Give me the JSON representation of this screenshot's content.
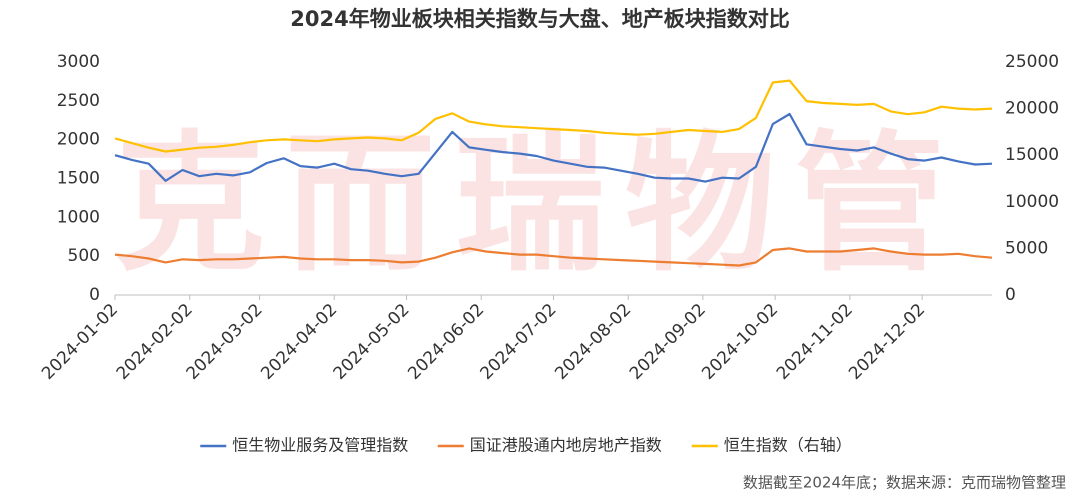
{
  "chart_data": {
    "type": "line",
    "title": "2024年物业板块相关指数与大盘、地产板块指数对比",
    "watermark": "克而瑞物管",
    "source": "数据截至2024年底；数据来源：克而瑞物管整理",
    "x": [
      "2024-01-02",
      "2024-01-09",
      "2024-01-16",
      "2024-01-23",
      "2024-01-30",
      "2024-02-06",
      "2024-02-13",
      "2024-02-20",
      "2024-02-27",
      "2024-03-05",
      "2024-03-12",
      "2024-03-19",
      "2024-03-26",
      "2024-04-02",
      "2024-04-09",
      "2024-04-16",
      "2024-04-23",
      "2024-04-30",
      "2024-05-07",
      "2024-05-14",
      "2024-05-21",
      "2024-05-28",
      "2024-06-04",
      "2024-06-11",
      "2024-06-18",
      "2024-06-25",
      "2024-07-02",
      "2024-07-09",
      "2024-07-16",
      "2024-07-23",
      "2024-07-30",
      "2024-08-06",
      "2024-08-13",
      "2024-08-20",
      "2024-08-27",
      "2024-09-03",
      "2024-09-10",
      "2024-09-17",
      "2024-09-24",
      "2024-10-01",
      "2024-10-08",
      "2024-10-15",
      "2024-10-22",
      "2024-10-29",
      "2024-11-05",
      "2024-11-12",
      "2024-11-19",
      "2024-11-26",
      "2024-12-03",
      "2024-12-10",
      "2024-12-17",
      "2024-12-24",
      "2024-12-31"
    ],
    "series": [
      {
        "name": "恒生物业服务及管理指数",
        "color": "#4472c4",
        "axis": "y",
        "values": [
          1800,
          1740,
          1690,
          1470,
          1610,
          1530,
          1560,
          1540,
          1580,
          1700,
          1760,
          1660,
          1640,
          1690,
          1620,
          1600,
          1560,
          1530,
          1560,
          1830,
          2100,
          1900,
          1870,
          1840,
          1820,
          1790,
          1730,
          1690,
          1650,
          1640,
          1600,
          1560,
          1510,
          1500,
          1500,
          1460,
          1510,
          1500,
          1650,
          2200,
          2330,
          1940,
          1910,
          1880,
          1860,
          1900,
          1820,
          1750,
          1730,
          1770,
          1720,
          1680,
          1690
        ]
      },
      {
        "name": "国证港股通内地房地产指数",
        "color": "#ed7d31",
        "axis": "y",
        "values": [
          520,
          500,
          470,
          420,
          460,
          450,
          460,
          460,
          470,
          480,
          490,
          470,
          460,
          460,
          450,
          450,
          440,
          420,
          430,
          480,
          550,
          600,
          560,
          540,
          520,
          520,
          500,
          480,
          470,
          460,
          450,
          440,
          430,
          420,
          410,
          400,
          390,
          380,
          420,
          580,
          600,
          560,
          560,
          560,
          580,
          600,
          560,
          530,
          520,
          520,
          530,
          500,
          480
        ]
      },
      {
        "name": "恒生指数（右轴）",
        "color": "#ffc000",
        "axis": "y2",
        "values": [
          16800,
          16300,
          15800,
          15400,
          15600,
          15800,
          15900,
          16100,
          16400,
          16600,
          16700,
          16600,
          16500,
          16700,
          16800,
          16900,
          16800,
          16600,
          17400,
          18900,
          19500,
          18600,
          18300,
          18100,
          18000,
          17900,
          17800,
          17700,
          17600,
          17400,
          17300,
          17200,
          17300,
          17500,
          17700,
          17600,
          17500,
          17800,
          19000,
          22800,
          23000,
          20800,
          20600,
          20500,
          20400,
          20500,
          19700,
          19400,
          19600,
          20200,
          20000,
          19900,
          20000
        ]
      }
    ],
    "xlim": [
      "2024-01-02",
      "2024-12-31"
    ],
    "xticks": [
      "2024-01-02",
      "2024-02-02",
      "2024-03-02",
      "2024-04-02",
      "2024-05-02",
      "2024-06-02",
      "2024-07-02",
      "2024-08-02",
      "2024-09-02",
      "2024-10-02",
      "2024-11-02",
      "2024-12-02"
    ],
    "ylim": [
      0,
      3000
    ],
    "yticks": [
      0,
      500,
      1000,
      1500,
      2000,
      2500,
      3000
    ],
    "y2lim": [
      0,
      25000
    ],
    "y2ticks": [
      0,
      5000,
      10000,
      15000,
      20000,
      25000
    ],
    "legend": "bottom"
  }
}
